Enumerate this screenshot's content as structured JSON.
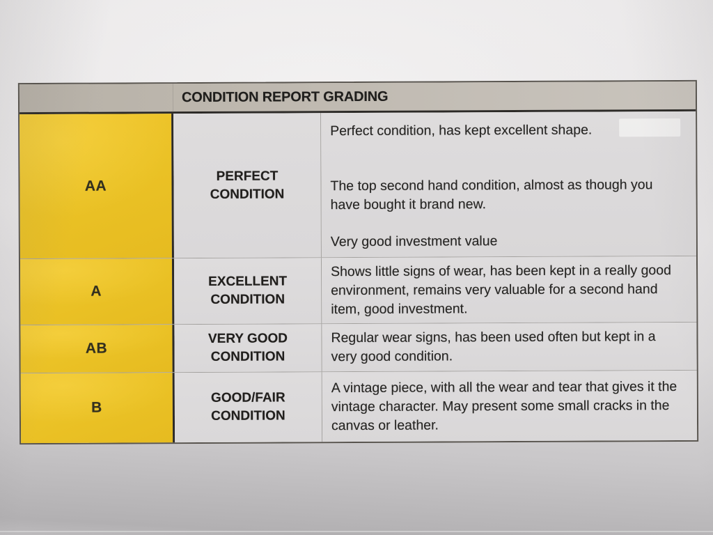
{
  "document": {
    "type": "printed-condition-grading-table"
  },
  "colors": {
    "accent_yellow": "#eac125",
    "header_gray": "#bdb7ae",
    "cell_gray": "#dcdadb",
    "paper": "#e8e6e7",
    "text": "#262523"
  },
  "table": {
    "title": "CONDITION REPORT GRADING",
    "rows": [
      {
        "grade": "AA",
        "label": "PERFECT CONDITION",
        "paragraphs": [
          "Perfect condition, has kept excellent shape.",
          "The top second hand condition, almost as though you have bought it brand new.",
          "Very good investment value"
        ]
      },
      {
        "grade": "A",
        "label": "EXCELLENT CONDITION",
        "paragraphs": [
          "Shows little signs of wear, has been kept in a really good environment, remains very valuable for a second hand item, good investment."
        ]
      },
      {
        "grade": "AB",
        "label": "VERY GOOD CONDITION",
        "paragraphs": [
          "Regular wear signs, has been used often but kept in a very good condition."
        ]
      },
      {
        "grade": "B",
        "label": "GOOD/FAIR CONDITION",
        "paragraphs": [
          "A vintage piece, with all the wear and tear that gives it the vintage character. May present some small cracks in the canvas or leather."
        ]
      }
    ]
  }
}
